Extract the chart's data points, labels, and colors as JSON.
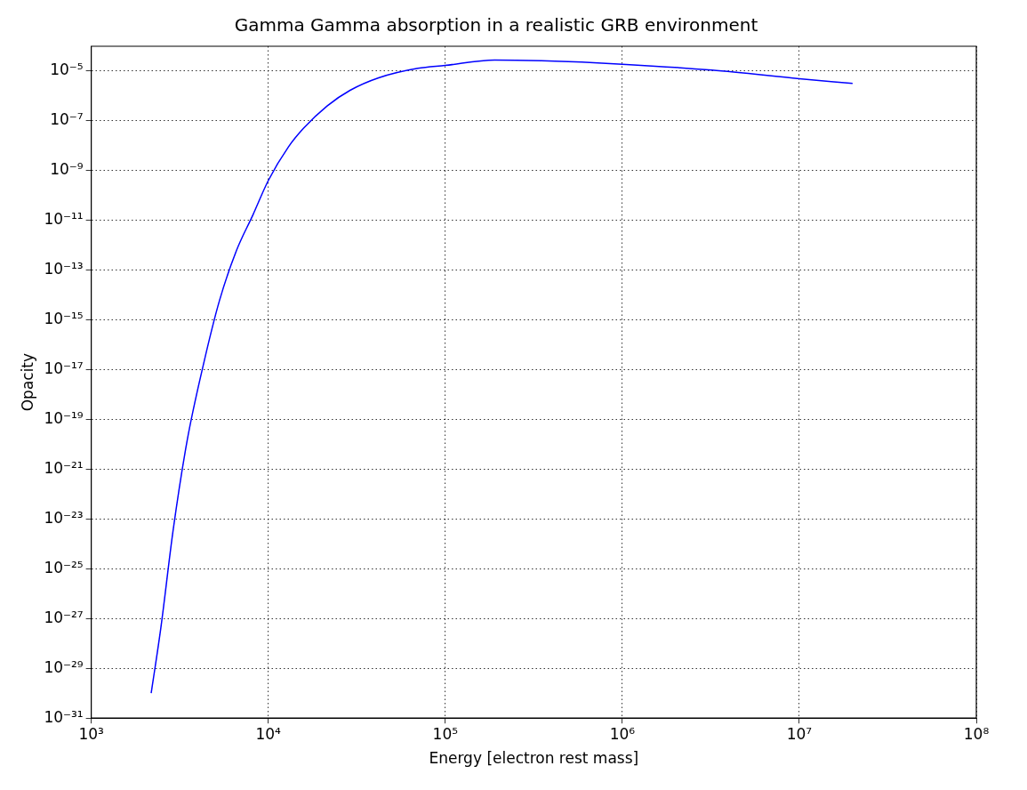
{
  "chart_data": {
    "type": "line",
    "title": "Gamma Gamma absorption in a realistic GRB environment",
    "xlabel": "Energy [electron rest mass]",
    "ylabel": "Opacity",
    "log": "xy",
    "grid": true,
    "marker": "none",
    "line_style": "solid",
    "xlim": [
      1000,
      100000000
    ],
    "xticks": [
      {
        "value": 1000,
        "label": "10³"
      },
      {
        "value": 10000,
        "label": "10⁴"
      },
      {
        "value": 100000,
        "label": "10⁵"
      },
      {
        "value": 1000000,
        "label": "10⁶"
      },
      {
        "value": 10000000,
        "label": "10⁷"
      },
      {
        "value": 100000000,
        "label": "10⁸"
      }
    ],
    "ylim": [
      1e-31,
      0.0001
    ],
    "yticks": [
      {
        "value": 1e-31,
        "label": "10⁻³¹"
      },
      {
        "value": 1e-29,
        "label": "10⁻²⁹"
      },
      {
        "value": 1e-27,
        "label": "10⁻²⁷"
      },
      {
        "value": 1e-25,
        "label": "10⁻²⁵"
      },
      {
        "value": 1e-23,
        "label": "10⁻²³"
      },
      {
        "value": 1e-21,
        "label": "10⁻²¹"
      },
      {
        "value": 1e-19,
        "label": "10⁻¹⁹"
      },
      {
        "value": 1e-17,
        "label": "10⁻¹⁷"
      },
      {
        "value": 1e-15,
        "label": "10⁻¹⁵"
      },
      {
        "value": 1e-13,
        "label": "10⁻¹³"
      },
      {
        "value": 1e-11,
        "label": "10⁻¹¹"
      },
      {
        "value": 1e-09,
        "label": "10⁻⁹"
      },
      {
        "value": 1e-07,
        "label": "10⁻⁷"
      },
      {
        "value": 1e-05,
        "label": "10⁻⁵"
      }
    ],
    "x": [
      2180,
      2470,
      2900,
      3480,
      4300,
      5300,
      6600,
      8200,
      10000,
      13000,
      15800,
      21500,
      29000,
      42000,
      70000,
      100000,
      190000,
      350000,
      1000000,
      3200000,
      10000000,
      20000000
    ],
    "series": [
      {
        "color": "#0000ff",
        "values": [
          1e-30,
          4e-28,
          3.5e-24,
          1.4e-20,
          1.6e-17,
          6e-15,
          6e-13,
          1.7e-11,
          4e-10,
          9e-09,
          5e-08,
          4e-07,
          1.7e-06,
          5.4e-06,
          1.3e-05,
          1.7e-05,
          2.8e-05,
          2.6e-05,
          1.9e-05,
          1.1e-05,
          5e-06,
          3.2e-06
        ]
      }
    ]
  }
}
